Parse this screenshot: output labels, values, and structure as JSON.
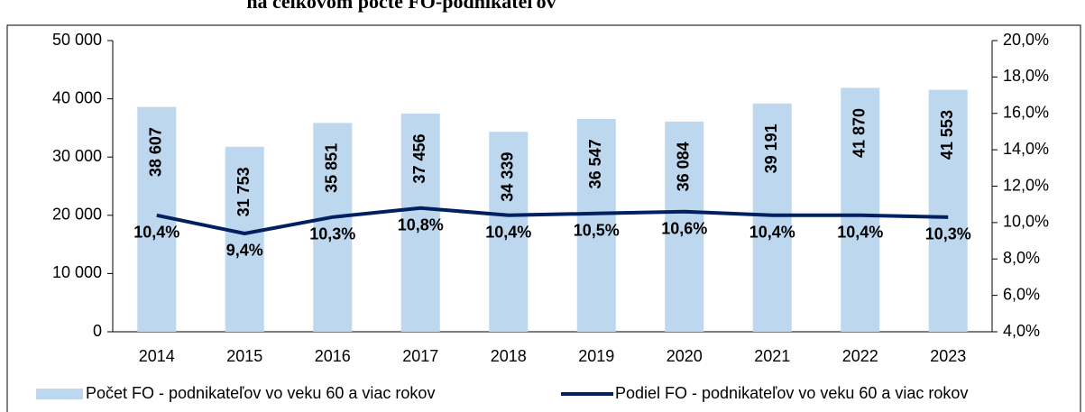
{
  "chart_data": {
    "type": "bar+line",
    "title": "na celkovom počte FO-podnikateľov",
    "categories": [
      "2014",
      "2015",
      "2016",
      "2017",
      "2018",
      "2019",
      "2020",
      "2021",
      "2022",
      "2023"
    ],
    "series": [
      {
        "name": "Počet FO - podnikateľov vo veku 60 a viac rokov",
        "type": "bar",
        "color": "#bdd7ee",
        "axis": "y",
        "values": [
          38607,
          31753,
          35851,
          37456,
          34339,
          36547,
          36084,
          39191,
          41870,
          41553
        ],
        "value_labels": [
          "38 607",
          "31 753",
          "35 851",
          "37 456",
          "34 339",
          "36 547",
          "36 084",
          "39 191",
          "41 870",
          "41 553"
        ]
      },
      {
        "name": "Podiel FO - podnikateľov vo veku 60 a viac rokov",
        "type": "line",
        "color": "#002060",
        "axis": "y2",
        "values": [
          10.4,
          9.4,
          10.3,
          10.8,
          10.4,
          10.5,
          10.6,
          10.4,
          10.4,
          10.3
        ],
        "value_labels": [
          "10,4%",
          "9,4%",
          "10,3%",
          "10,8%",
          "10,4%",
          "10,5%",
          "10,6%",
          "10,4%",
          "10,4%",
          "10,3%"
        ]
      }
    ],
    "ylim": [
      0,
      50000
    ],
    "yticks": [
      0,
      {
        "value": 10000,
        "label": "10 000"
      },
      {
        "value": 20000,
        "label": "20 000"
      },
      {
        "value": 30000,
        "label": "30 000"
      },
      {
        "value": 40000,
        "label": "40 000"
      },
      {
        "value": 50000,
        "label": "50 000"
      }
    ],
    "y2lim": [
      4,
      20
    ],
    "y2ticks": [
      {
        "value": 4,
        "label": "4,0%"
      },
      {
        "value": 6,
        "label": "6,0%"
      },
      {
        "value": 8,
        "label": "8,0%"
      },
      {
        "value": 10,
        "label": "10,0%"
      },
      {
        "value": 12,
        "label": "12,0%"
      },
      {
        "value": 14,
        "label": "14,0%"
      },
      {
        "value": 16,
        "label": "16,0%"
      },
      {
        "value": 18,
        "label": "18,0%"
      },
      {
        "value": 20,
        "label": "20,0%"
      }
    ],
    "legend": "bottom"
  }
}
